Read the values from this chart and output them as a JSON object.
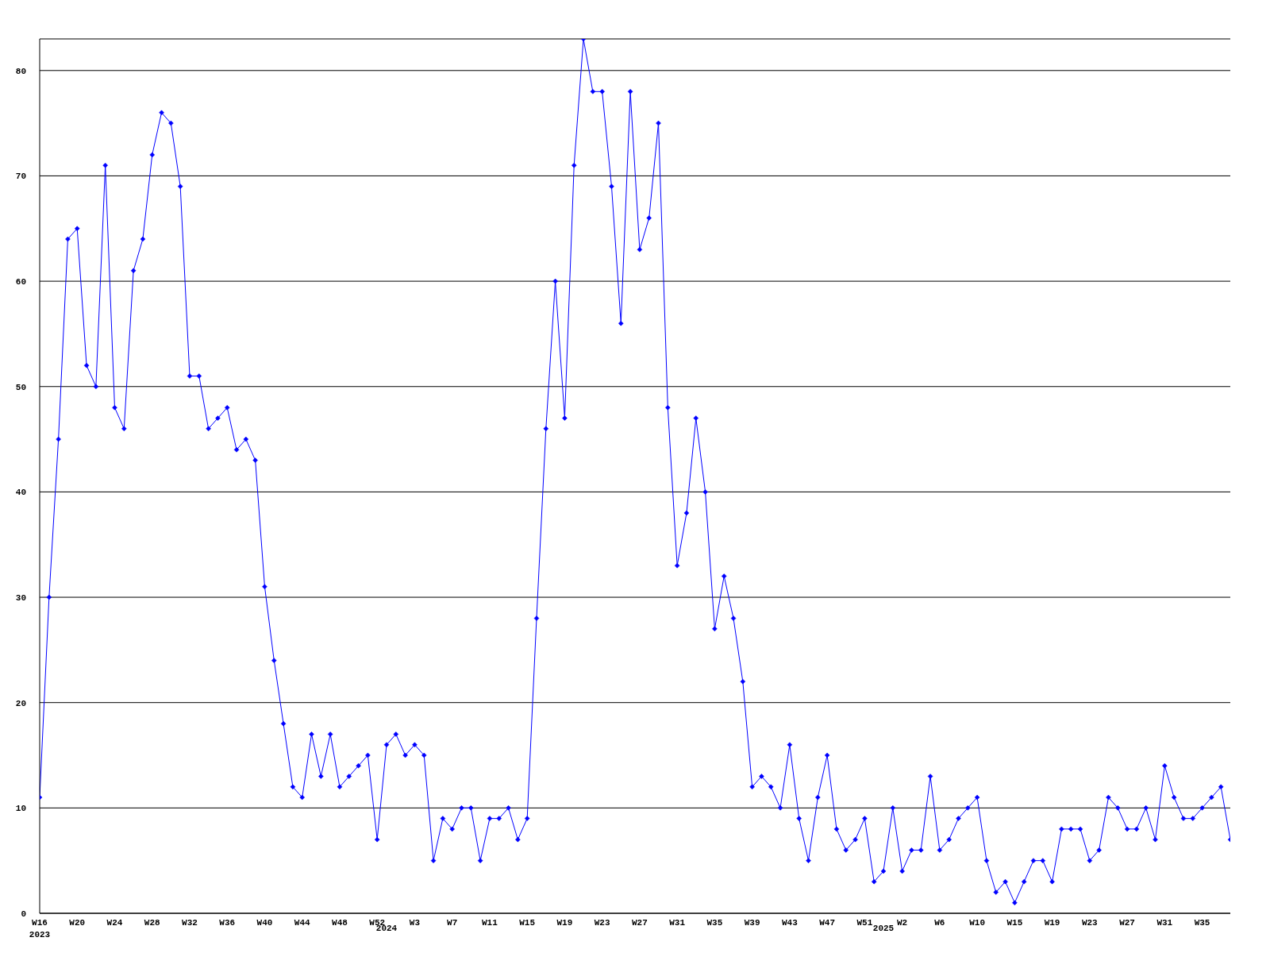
{
  "chart_data": {
    "type": "line",
    "categories": [
      "W16\n2023",
      null,
      null,
      null,
      "W20",
      null,
      null,
      null,
      "W24",
      null,
      null,
      null,
      "W28",
      null,
      null,
      null,
      "W32",
      null,
      null,
      null,
      "W36",
      null,
      null,
      null,
      "W40",
      null,
      null,
      null,
      "W44",
      null,
      null,
      null,
      "W48",
      null,
      null,
      null,
      "W52",
      "\n2024",
      null,
      null,
      "W3",
      null,
      null,
      null,
      "W7",
      null,
      null,
      null,
      "W11",
      null,
      null,
      null,
      "W15",
      null,
      null,
      null,
      "W19",
      null,
      null,
      null,
      "W23",
      null,
      null,
      null,
      "W27",
      null,
      null,
      null,
      "W31",
      null,
      null,
      null,
      "W35",
      null,
      null,
      null,
      "W39",
      null,
      null,
      null,
      "W43",
      null,
      null,
      null,
      "W47",
      null,
      null,
      null,
      "W51",
      null,
      "\n2025",
      null,
      "W2",
      null,
      null,
      null,
      "W6",
      null,
      null,
      null,
      "W10",
      null,
      null,
      null,
      "W15",
      null,
      null,
      null,
      "W19",
      null,
      null,
      null,
      "W23",
      null,
      null,
      null,
      "W27",
      null,
      null,
      null,
      "W31",
      null,
      null,
      null,
      "W35",
      null,
      null,
      null
    ],
    "values": [
      11,
      30,
      45,
      64,
      65,
      52,
      50,
      71,
      48,
      46,
      61,
      64,
      72,
      76,
      75,
      69,
      51,
      51,
      46,
      47,
      48,
      44,
      45,
      43,
      31,
      24,
      18,
      12,
      11,
      17,
      13,
      17,
      12,
      13,
      14,
      15,
      7,
      16,
      17,
      15,
      16,
      15,
      5,
      9,
      8,
      10,
      10,
      5,
      9,
      9,
      10,
      7,
      9,
      28,
      46,
      60,
      47,
      71,
      83,
      78,
      78,
      69,
      56,
      78,
      63,
      66,
      75,
      48,
      33,
      38,
      47,
      40,
      27,
      32,
      28,
      22,
      12,
      13,
      12,
      10,
      16,
      9,
      5,
      11,
      15,
      8,
      6,
      7,
      9,
      3,
      4,
      10,
      4,
      6,
      6,
      13,
      6,
      7,
      9,
      10,
      11,
      5,
      2,
      3,
      1,
      3,
      5,
      5,
      3,
      8,
      8,
      8,
      5,
      6,
      11,
      10,
      8,
      8,
      10,
      7,
      14,
      11,
      9,
      9,
      10,
      11,
      12,
      7
    ],
    "color": "#0000ff",
    "ylim": [
      0,
      83
    ],
    "yticks": [
      0,
      10,
      20,
      30,
      40,
      50,
      60,
      70,
      80
    ],
    "grid": "y",
    "marker": "diamond",
    "line_style": "solid"
  }
}
